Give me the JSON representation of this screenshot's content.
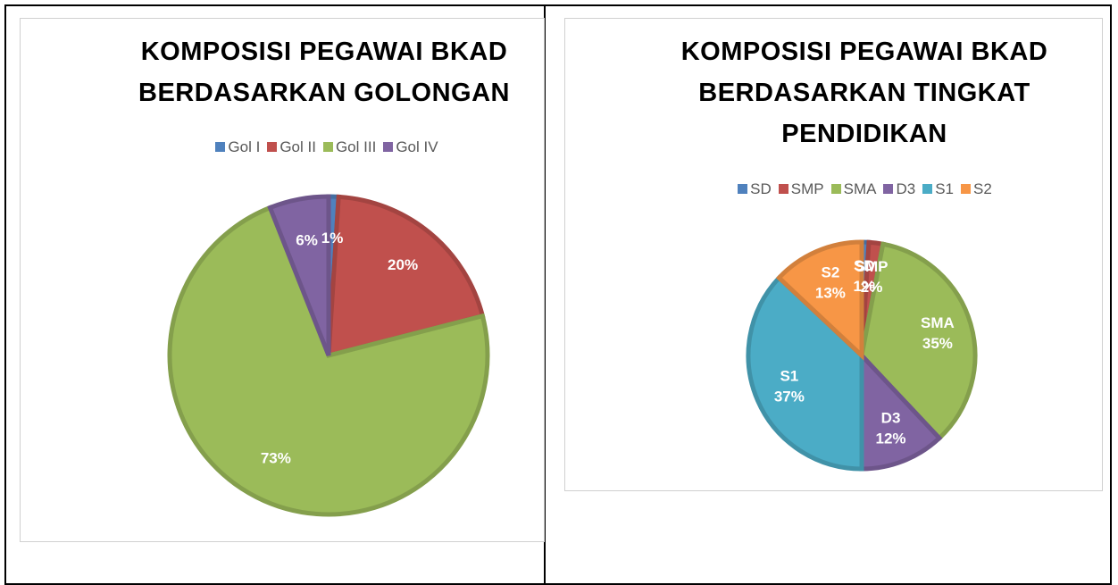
{
  "chart_data": [
    {
      "type": "pie",
      "title": "KOMPOSISI PEGAWAI BKAD BERDASARKAN GOLONGAN",
      "categories": [
        "Gol I",
        "Gol II",
        "Gol III",
        "Gol IV"
      ],
      "values": [
        1,
        20,
        73,
        6
      ],
      "value_labels": [
        "1%",
        "20%",
        "73%",
        "6%"
      ],
      "colors": [
        "#4f81bd",
        "#c0504d",
        "#9bbb59",
        "#8064a2"
      ],
      "label_category": false,
      "legend": "top"
    },
    {
      "type": "pie",
      "title": "KOMPOSISI PEGAWAI BKAD BERDASARKAN TINGKAT PENDIDIKAN",
      "categories": [
        "SD",
        "SMP",
        "SMA",
        "D3",
        "S1",
        "S2"
      ],
      "values": [
        1,
        2,
        35,
        12,
        37,
        13
      ],
      "value_labels": [
        "1%",
        "2%",
        "35%",
        "12%",
        "37%",
        "13%"
      ],
      "colors": [
        "#4f81bd",
        "#c0504d",
        "#9bbb59",
        "#8064a2",
        "#4bacc6",
        "#f79646"
      ],
      "label_category": true,
      "legend": "top"
    }
  ]
}
